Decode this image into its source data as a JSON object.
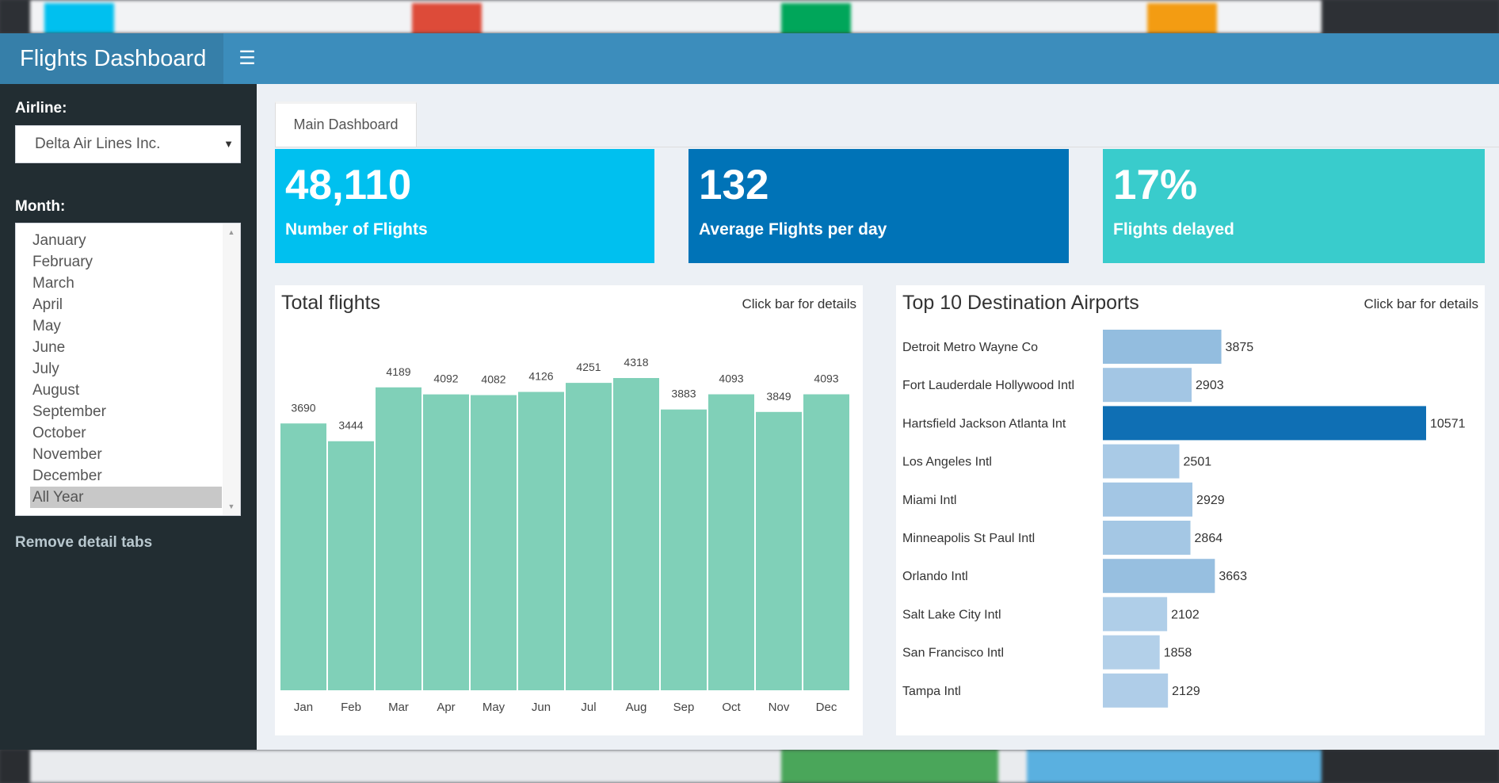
{
  "app": {
    "title": "Flights Dashboard",
    "menu_icon": "hamburger-menu-icon"
  },
  "sidebar": {
    "airline_label": "Airline:",
    "airline_value": "Delta Air Lines Inc.",
    "month_label": "Month:",
    "months": [
      "January",
      "February",
      "March",
      "April",
      "May",
      "June",
      "July",
      "August",
      "September",
      "October",
      "November",
      "December",
      "All Year"
    ],
    "selected_month": "All Year",
    "remove_link": "Remove detail tabs"
  },
  "tabs": [
    {
      "label": "Main Dashboard"
    }
  ],
  "kpis": [
    {
      "value": "48,110",
      "label": "Number of Flights",
      "color": "#00c0ef"
    },
    {
      "value": "132",
      "label": "Average Flights per day",
      "color": "#0073b7"
    },
    {
      "value": "17%",
      "label": "Flights delayed",
      "color": "#39cccc"
    }
  ],
  "total_flights": {
    "title": "Total flights",
    "hint": "Click bar for details"
  },
  "top_airports": {
    "title": "Top 10 Destination Airports",
    "hint": "Click bar for details"
  },
  "chart_data": [
    {
      "type": "bar",
      "title": "Total flights",
      "categories": [
        "Jan",
        "Feb",
        "Mar",
        "Apr",
        "May",
        "Jun",
        "Jul",
        "Aug",
        "Sep",
        "Oct",
        "Nov",
        "Dec"
      ],
      "values": [
        3690,
        3444,
        4189,
        4092,
        4082,
        4126,
        4251,
        4318,
        3883,
        4093,
        3849,
        4093
      ],
      "ylim": [
        0,
        4318
      ],
      "color": "#80d0b8",
      "grid": false,
      "data_labels": true
    },
    {
      "type": "bar",
      "orientation": "horizontal",
      "title": "Top 10 Destination Airports",
      "categories": [
        "Detroit Metro Wayne Co",
        "Fort Lauderdale Hollywood Intl",
        "Hartsfield Jackson Atlanta Int",
        "Los Angeles Intl",
        "Miami Intl",
        "Minneapolis St Paul Intl",
        "Orlando Intl",
        "Salt Lake City Intl",
        "San Francisco Intl",
        "Tampa Intl"
      ],
      "values": [
        3875,
        2903,
        10571,
        2501,
        2929,
        2864,
        3663,
        2102,
        1858,
        2129
      ],
      "xlim": [
        0,
        10571
      ],
      "color_scale": [
        "#c6dbef",
        "#0f6fb4"
      ],
      "grid": false,
      "data_labels": true
    }
  ]
}
